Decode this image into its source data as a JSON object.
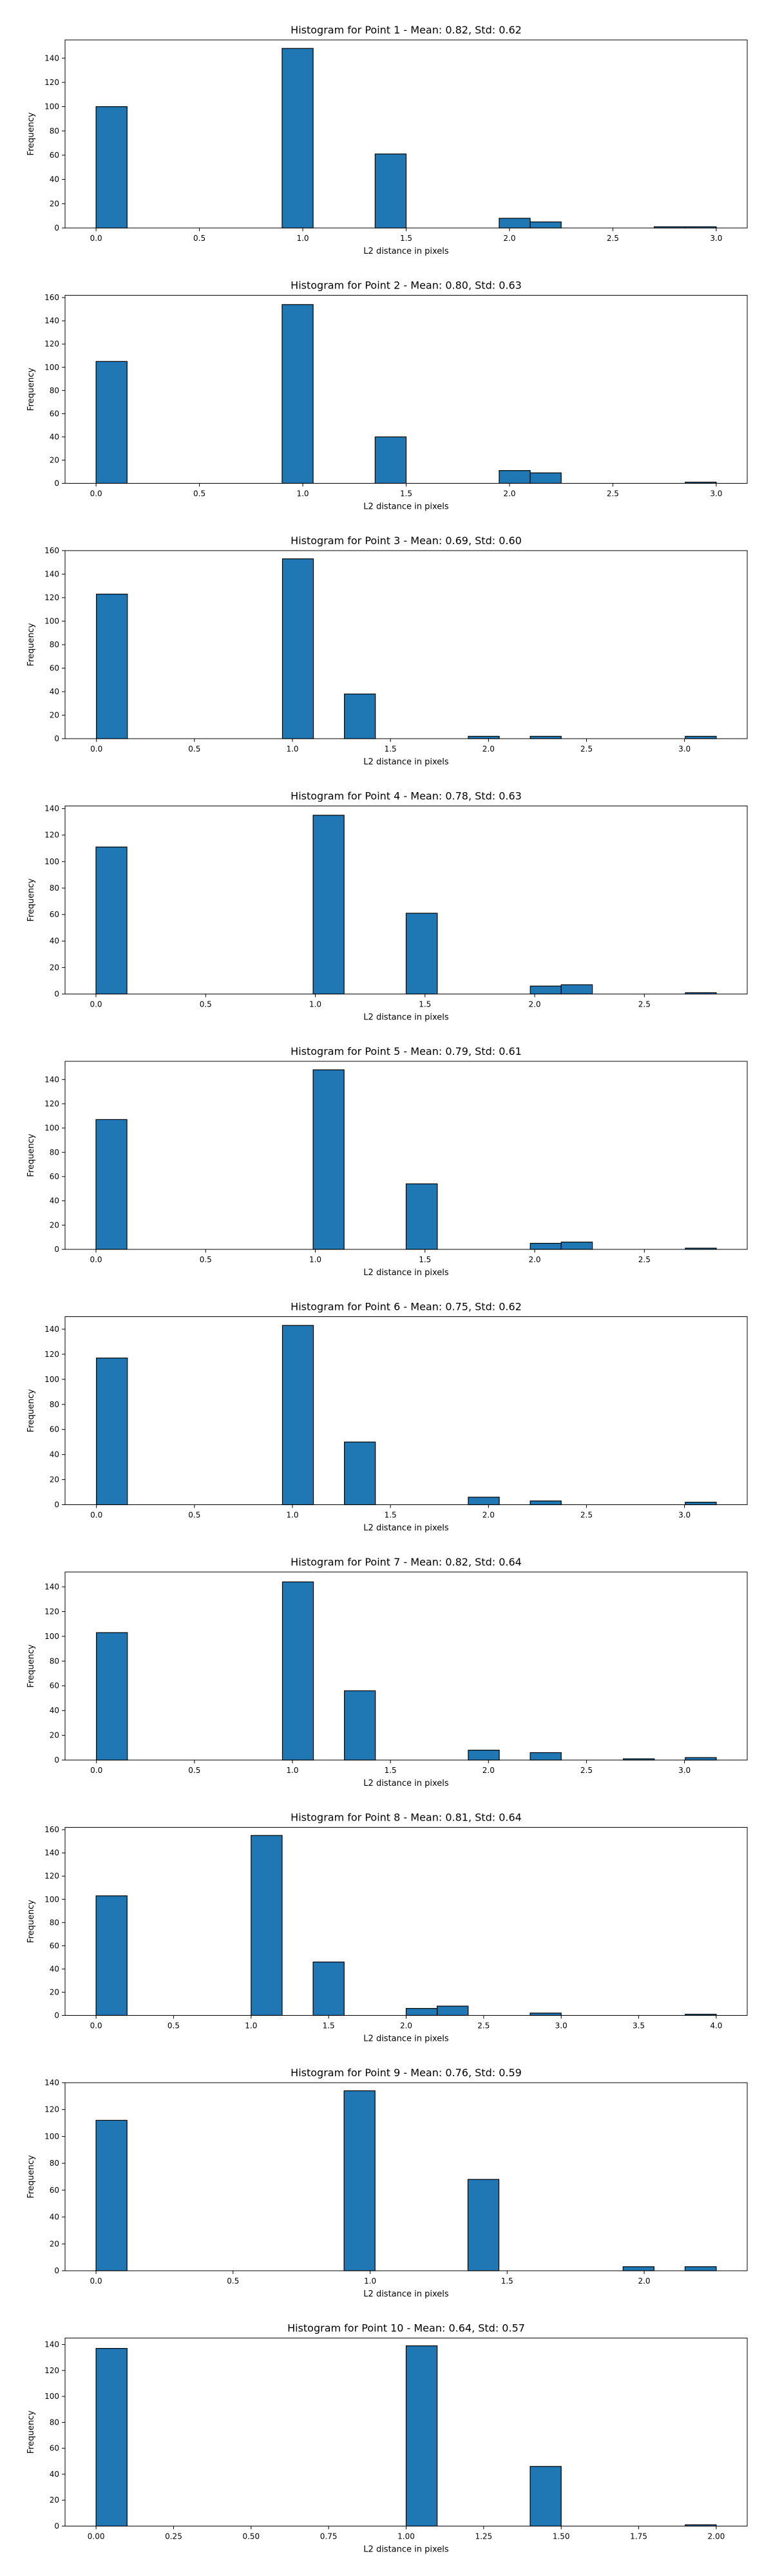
{
  "chart_data": [
    {
      "type": "bar",
      "title": "Histogram for Point 1 - Mean: 0.82, Std: 0.62",
      "xlabel": "L2 distance in pixels",
      "ylabel": "Frequency",
      "xlim": [
        -0.15,
        3.15
      ],
      "ylim": [
        0,
        155
      ],
      "xticks": [
        0.0,
        0.5,
        1.0,
        1.5,
        2.0,
        2.5,
        3.0
      ],
      "xtick_labels": [
        "0.0",
        "0.5",
        "1.0",
        "1.5",
        "2.0",
        "2.5",
        "3.0"
      ],
      "yticks": [
        0,
        20,
        40,
        60,
        80,
        100,
        120,
        140
      ],
      "bins": [
        {
          "x0": 0.0,
          "x1": 0.15,
          "count": 100
        },
        {
          "x0": 0.9,
          "x1": 1.05,
          "count": 148
        },
        {
          "x0": 1.35,
          "x1": 1.5,
          "count": 61
        },
        {
          "x0": 1.95,
          "x1": 2.1,
          "count": 8
        },
        {
          "x0": 2.1,
          "x1": 2.25,
          "count": 5
        },
        {
          "x0": 2.7,
          "x1": 2.85,
          "count": 1
        },
        {
          "x0": 2.85,
          "x1": 3.0,
          "count": 1
        }
      ]
    },
    {
      "type": "bar",
      "title": "Histogram for Point 2 - Mean: 0.80, Std: 0.63",
      "xlabel": "L2 distance in pixels",
      "ylabel": "Frequency",
      "xlim": [
        -0.15,
        3.15
      ],
      "ylim": [
        0,
        162
      ],
      "xticks": [
        0.0,
        0.5,
        1.0,
        1.5,
        2.0,
        2.5,
        3.0
      ],
      "xtick_labels": [
        "0.0",
        "0.5",
        "1.0",
        "1.5",
        "2.0",
        "2.5",
        "3.0"
      ],
      "yticks": [
        0,
        20,
        40,
        60,
        80,
        100,
        120,
        140,
        160
      ],
      "bins": [
        {
          "x0": 0.0,
          "x1": 0.15,
          "count": 105
        },
        {
          "x0": 0.9,
          "x1": 1.05,
          "count": 154
        },
        {
          "x0": 1.35,
          "x1": 1.5,
          "count": 40
        },
        {
          "x0": 1.95,
          "x1": 2.1,
          "count": 11
        },
        {
          "x0": 2.1,
          "x1": 2.25,
          "count": 9
        },
        {
          "x0": 2.85,
          "x1": 3.0,
          "count": 1
        }
      ]
    },
    {
      "type": "bar",
      "title": "Histogram for Point 3 - Mean: 0.69, Std: 0.60",
      "xlabel": "L2 distance in pixels",
      "ylabel": "Frequency",
      "xlim": [
        -0.16,
        3.32
      ],
      "ylim": [
        0,
        160
      ],
      "xticks": [
        0.0,
        0.5,
        1.0,
        1.5,
        2.0,
        2.5,
        3.0
      ],
      "xtick_labels": [
        "0.0",
        "0.5",
        "1.0",
        "1.5",
        "2.0",
        "2.5",
        "3.0"
      ],
      "yticks": [
        0,
        20,
        40,
        60,
        80,
        100,
        120,
        140,
        160
      ],
      "bins": [
        {
          "x0": 0.0,
          "x1": 0.158,
          "count": 123
        },
        {
          "x0": 0.949,
          "x1": 1.107,
          "count": 153
        },
        {
          "x0": 1.265,
          "x1": 1.423,
          "count": 38
        },
        {
          "x0": 1.897,
          "x1": 2.055,
          "count": 2
        },
        {
          "x0": 2.213,
          "x1": 2.371,
          "count": 2
        },
        {
          "x0": 3.004,
          "x1": 3.162,
          "count": 2
        }
      ]
    },
    {
      "type": "bar",
      "title": "Histogram for Point 4 - Mean: 0.78, Std: 0.63",
      "xlabel": "L2 distance in pixels",
      "ylabel": "Frequency",
      "xlim": [
        -0.141,
        2.969
      ],
      "ylim": [
        0,
        142
      ],
      "xticks": [
        0.0,
        0.5,
        1.0,
        1.5,
        2.0,
        2.5
      ],
      "xtick_labels": [
        "0.0",
        "0.5",
        "1.0",
        "1.5",
        "2.0",
        "2.5"
      ],
      "yticks": [
        0,
        20,
        40,
        60,
        80,
        100,
        120,
        140
      ],
      "bins": [
        {
          "x0": 0.0,
          "x1": 0.141,
          "count": 111
        },
        {
          "x0": 0.99,
          "x1": 1.131,
          "count": 135
        },
        {
          "x0": 1.414,
          "x1": 1.556,
          "count": 61
        },
        {
          "x0": 1.98,
          "x1": 2.121,
          "count": 6
        },
        {
          "x0": 2.121,
          "x1": 2.263,
          "count": 7
        },
        {
          "x0": 2.687,
          "x1": 2.828,
          "count": 1
        }
      ]
    },
    {
      "type": "bar",
      "title": "Histogram for Point 5 - Mean: 0.79, Std: 0.61",
      "xlabel": "L2 distance in pixels",
      "ylabel": "Frequency",
      "xlim": [
        -0.141,
        2.969
      ],
      "ylim": [
        0,
        155
      ],
      "xticks": [
        0.0,
        0.5,
        1.0,
        1.5,
        2.0,
        2.5
      ],
      "xtick_labels": [
        "0.0",
        "0.5",
        "1.0",
        "1.5",
        "2.0",
        "2.5"
      ],
      "yticks": [
        0,
        20,
        40,
        60,
        80,
        100,
        120,
        140
      ],
      "bins": [
        {
          "x0": 0.0,
          "x1": 0.141,
          "count": 107
        },
        {
          "x0": 0.99,
          "x1": 1.131,
          "count": 148
        },
        {
          "x0": 1.414,
          "x1": 1.556,
          "count": 54
        },
        {
          "x0": 1.98,
          "x1": 2.121,
          "count": 5
        },
        {
          "x0": 2.121,
          "x1": 2.263,
          "count": 6
        },
        {
          "x0": 2.687,
          "x1": 2.828,
          "count": 1
        }
      ]
    },
    {
      "type": "bar",
      "title": "Histogram for Point 6 - Mean: 0.75, Std: 0.62",
      "xlabel": "L2 distance in pixels",
      "ylabel": "Frequency",
      "xlim": [
        -0.16,
        3.32
      ],
      "ylim": [
        0,
        150
      ],
      "xticks": [
        0.0,
        0.5,
        1.0,
        1.5,
        2.0,
        2.5,
        3.0
      ],
      "xtick_labels": [
        "0.0",
        "0.5",
        "1.0",
        "1.5",
        "2.0",
        "2.5",
        "3.0"
      ],
      "yticks": [
        0,
        20,
        40,
        60,
        80,
        100,
        120,
        140
      ],
      "bins": [
        {
          "x0": 0.0,
          "x1": 0.158,
          "count": 117
        },
        {
          "x0": 0.949,
          "x1": 1.107,
          "count": 143
        },
        {
          "x0": 1.265,
          "x1": 1.423,
          "count": 50
        },
        {
          "x0": 1.897,
          "x1": 2.055,
          "count": 6
        },
        {
          "x0": 2.213,
          "x1": 2.371,
          "count": 3
        },
        {
          "x0": 3.004,
          "x1": 3.162,
          "count": 2
        }
      ]
    },
    {
      "type": "bar",
      "title": "Histogram for Point 7 - Mean: 0.82, Std: 0.64",
      "xlabel": "L2 distance in pixels",
      "ylabel": "Frequency",
      "xlim": [
        -0.16,
        3.32
      ],
      "ylim": [
        0,
        152
      ],
      "xticks": [
        0.0,
        0.5,
        1.0,
        1.5,
        2.0,
        2.5,
        3.0
      ],
      "xtick_labels": [
        "0.0",
        "0.5",
        "1.0",
        "1.5",
        "2.0",
        "2.5",
        "3.0"
      ],
      "yticks": [
        0,
        20,
        40,
        60,
        80,
        100,
        120,
        140
      ],
      "bins": [
        {
          "x0": 0.0,
          "x1": 0.158,
          "count": 103
        },
        {
          "x0": 0.949,
          "x1": 1.107,
          "count": 144
        },
        {
          "x0": 1.265,
          "x1": 1.423,
          "count": 56
        },
        {
          "x0": 1.897,
          "x1": 2.055,
          "count": 8
        },
        {
          "x0": 2.213,
          "x1": 2.371,
          "count": 6
        },
        {
          "x0": 2.688,
          "x1": 2.846,
          "count": 1
        },
        {
          "x0": 3.004,
          "x1": 3.162,
          "count": 2
        }
      ]
    },
    {
      "type": "bar",
      "title": "Histogram for Point 8 - Mean: 0.81, Std: 0.64",
      "xlabel": "L2 distance in pixels",
      "ylabel": "Frequency",
      "xlim": [
        -0.2,
        4.2
      ],
      "ylim": [
        0,
        162
      ],
      "xticks": [
        0.0,
        0.5,
        1.0,
        1.5,
        2.0,
        2.5,
        3.0,
        3.5,
        4.0
      ],
      "xtick_labels": [
        "0.0",
        "0.5",
        "1.0",
        "1.5",
        "2.0",
        "2.5",
        "3.0",
        "3.5",
        "4.0"
      ],
      "yticks": [
        0,
        20,
        40,
        60,
        80,
        100,
        120,
        140,
        160
      ],
      "bins": [
        {
          "x0": 0.0,
          "x1": 0.2,
          "count": 103
        },
        {
          "x0": 1.0,
          "x1": 1.2,
          "count": 155
        },
        {
          "x0": 1.4,
          "x1": 1.6,
          "count": 46
        },
        {
          "x0": 2.0,
          "x1": 2.2,
          "count": 6
        },
        {
          "x0": 2.2,
          "x1": 2.4,
          "count": 8
        },
        {
          "x0": 2.8,
          "x1": 3.0,
          "count": 2
        },
        {
          "x0": 3.8,
          "x1": 4.0,
          "count": 1
        }
      ]
    },
    {
      "type": "bar",
      "title": "Histogram for Point 9 - Mean: 0.76, Std: 0.59",
      "xlabel": "L2 distance in pixels",
      "ylabel": "Frequency",
      "xlim": [
        -0.113,
        2.376
      ],
      "ylim": [
        0,
        140
      ],
      "xticks": [
        0.0,
        0.5,
        1.0,
        1.5,
        2.0
      ],
      "xtick_labels": [
        "0.0",
        "0.5",
        "1.0",
        "1.5",
        "2.0"
      ],
      "yticks": [
        0,
        20,
        40,
        60,
        80,
        100,
        120,
        140
      ],
      "bins": [
        {
          "x0": 0.0,
          "x1": 0.113,
          "count": 112
        },
        {
          "x0": 0.905,
          "x1": 1.018,
          "count": 134
        },
        {
          "x0": 1.357,
          "x1": 1.47,
          "count": 68
        },
        {
          "x0": 1.923,
          "x1": 2.036,
          "count": 3
        },
        {
          "x0": 2.149,
          "x1": 2.263,
          "count": 3
        }
      ]
    },
    {
      "type": "bar",
      "title": "Histogram for Point 10 - Mean: 0.64, Std: 0.57",
      "xlabel": "L2 distance in pixels",
      "ylabel": "Frequency",
      "xlim": [
        -0.1,
        2.1
      ],
      "ylim": [
        0,
        145
      ],
      "xticks": [
        0.0,
        0.25,
        0.5,
        0.75,
        1.0,
        1.25,
        1.5,
        1.75,
        2.0
      ],
      "xtick_labels": [
        "0.00",
        "0.25",
        "0.50",
        "0.75",
        "1.00",
        "1.25",
        "1.50",
        "1.75",
        "2.00"
      ],
      "yticks": [
        0,
        20,
        40,
        60,
        80,
        100,
        120,
        140
      ],
      "bins": [
        {
          "x0": 0.0,
          "x1": 0.1,
          "count": 137
        },
        {
          "x0": 1.0,
          "x1": 1.1,
          "count": 139
        },
        {
          "x0": 1.4,
          "x1": 1.5,
          "count": 46
        },
        {
          "x0": 1.9,
          "x1": 2.0,
          "count": 1
        }
      ]
    }
  ],
  "style": {
    "bar_color": "#1f77b4",
    "edge_color": "#000000",
    "axis_color": "#000000",
    "background": "#ffffff"
  }
}
